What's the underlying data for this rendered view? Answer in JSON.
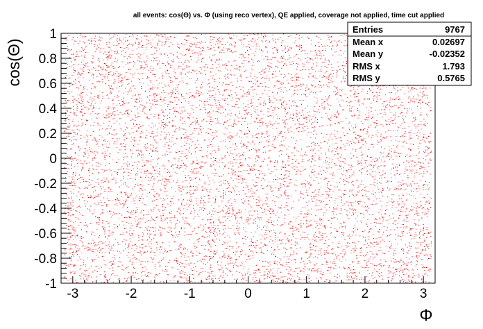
{
  "chart_data": {
    "type": "scatter",
    "title": "all events: cos(Θ) vs. Φ (using reco vertex), QE applied, coverage not applied, time cut applied",
    "xlabel": "Φ",
    "ylabel": "cos(Θ)",
    "xlim": [
      -3.2,
      3.2
    ],
    "ylim": [
      -1,
      1
    ],
    "x_ticks": [
      "-3",
      "-2",
      "-1",
      "0",
      "1",
      "2",
      "3"
    ],
    "y_ticks": [
      "-1",
      "-0.8",
      "-0.6",
      "-0.4",
      "-0.2",
      "0",
      "0.2",
      "0.4",
      "0.6",
      "0.8",
      "1"
    ],
    "point_color": "#ff0000",
    "grid": false,
    "distribution": {
      "kind": "uniform",
      "x_range": [
        -3.14159,
        3.14159
      ],
      "y_range": [
        -1,
        1
      ],
      "n_points": 9767
    },
    "stats_box": {
      "entries_label": "Entries",
      "entries_value": "9767",
      "mean_x_label": "Mean x",
      "mean_x_value": "0.02697",
      "mean_y_label": "Mean y",
      "mean_y_value": "-0.02352",
      "rms_x_label": "RMS x",
      "rms_x_value": "1.793",
      "rms_y_label": "RMS y",
      "rms_y_value": "0.5765"
    }
  }
}
